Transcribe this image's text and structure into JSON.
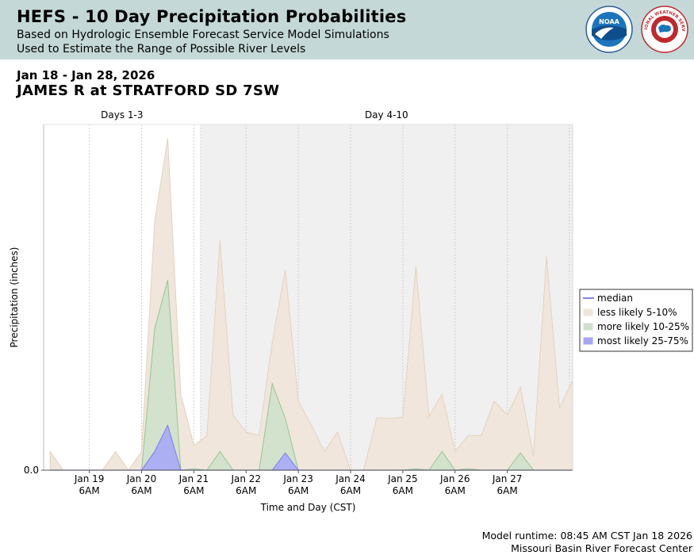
{
  "header": {
    "title": "HEFS - 10 Day Precipitation Probabilities",
    "subtitle1": "Based on Hydrologic Ensemble Forecast Service Model Simulations",
    "subtitle2": "Used to Estimate the Range of Possible River Levels",
    "logo_noaa_text": "NOAA",
    "logo_nws_text": "NATIONAL WEATHER SERVICE"
  },
  "info": {
    "date_range": "Jan 18 - Jan 28, 2026",
    "location": "JAMES R at STRATFORD SD 7SW"
  },
  "footer": {
    "runtime": "Model runtime: 08:45 AM CST Jan 18 2026",
    "center": "Missouri Basin River Forecast Center"
  },
  "colors": {
    "header_bg": "#c4d9d7",
    "plot_shade": "#f0f0f0",
    "less_likely": "#efe5d9",
    "more_likely": "#cde1c9",
    "most_likely": "#a6a6f7",
    "median": "#8282ee"
  },
  "chart_data": {
    "type": "area",
    "title": "",
    "xlabel": "Time and Day (CST)",
    "ylabel": "Precipitation (inches)",
    "x_unit": "hours since Jan 18 00:00 CST",
    "x_range": [
      9,
      252
    ],
    "ylim": [
      0,
      1
    ],
    "y_ticks": [
      {
        "value": 0,
        "label": "0.0"
      }
    ],
    "x_ticks": [
      {
        "x": 30,
        "line1": "Jan 19",
        "line2": "6AM"
      },
      {
        "x": 54,
        "line1": "Jan 20",
        "line2": "6AM"
      },
      {
        "x": 78,
        "line1": "Jan 21",
        "line2": "6AM"
      },
      {
        "x": 102,
        "line1": "Jan 22",
        "line2": "6AM"
      },
      {
        "x": 126,
        "line1": "Jan 23",
        "line2": "6AM"
      },
      {
        "x": 150,
        "line1": "Jan 24",
        "line2": "6AM"
      },
      {
        "x": 174,
        "line1": "Jan 25",
        "line2": "6AM"
      },
      {
        "x": 198,
        "line1": "Jan 26",
        "line2": "6AM"
      },
      {
        "x": 222,
        "line1": "Jan 27",
        "line2": "6AM"
      }
    ],
    "periods": [
      {
        "label": "Days 1-3",
        "start": 9,
        "end": 81
      },
      {
        "label": "Day 4-10",
        "start": 81,
        "end": 252
      }
    ],
    "period_boundary": 81,
    "extra_gridlines": [
      250.5
    ],
    "x": [
      12,
      18,
      24,
      30,
      36,
      42,
      48,
      54,
      60,
      66,
      72,
      78,
      84,
      90,
      96,
      102,
      108,
      114,
      120,
      126,
      132,
      138,
      144,
      150,
      156,
      162,
      168,
      174,
      180,
      186,
      192,
      198,
      204,
      210,
      216,
      222,
      228,
      234,
      240,
      246,
      252
    ],
    "series": [
      {
        "name": "less likely 5-10%",
        "values": [
          0.054,
          0,
          0,
          0,
          0,
          0.054,
          0,
          0.054,
          0.72,
          0.96,
          0.22,
          0.072,
          0.1,
          0.665,
          0.16,
          0.11,
          0.1,
          0.37,
          0.58,
          0.2,
          0.13,
          0.054,
          0.11,
          0,
          0,
          0.152,
          0.15,
          0.153,
          0.59,
          0.155,
          0.22,
          0.054,
          0.1,
          0.1,
          0.2,
          0.16,
          0.24,
          0.04,
          0.62,
          0.18,
          0.26
        ]
      },
      {
        "name": "more likely 10-25%",
        "values": [
          0,
          0,
          0,
          0,
          0,
          0,
          0,
          0,
          0.41,
          0.55,
          0,
          0.004,
          0,
          0.054,
          0,
          0,
          0,
          0.25,
          0.15,
          0,
          0,
          0,
          0,
          0,
          0,
          0,
          0,
          0,
          0.004,
          0,
          0.054,
          0,
          0.004,
          0,
          0,
          0,
          0.05,
          0,
          0,
          0,
          0
        ]
      },
      {
        "name": "most likely 25-75%",
        "values": [
          0,
          0,
          0,
          0,
          0,
          0,
          0,
          0,
          0.054,
          0.13,
          0,
          0,
          0,
          0,
          0,
          0,
          0,
          0,
          0.05,
          0,
          0,
          0,
          0,
          0,
          0,
          0,
          0,
          0,
          0,
          0,
          0,
          0,
          0,
          0,
          0,
          0,
          0,
          0,
          0,
          0,
          0
        ]
      },
      {
        "name": "median",
        "values": [
          0,
          0,
          0,
          0,
          0,
          0,
          0,
          0,
          0,
          0,
          0,
          0,
          0,
          0,
          0,
          0,
          0,
          0,
          0,
          0,
          0,
          0,
          0,
          0,
          0,
          0,
          0,
          0,
          0,
          0,
          0,
          0,
          0,
          0,
          0,
          0,
          0,
          0,
          0,
          0,
          0
        ]
      }
    ],
    "legend": {
      "placement": "right",
      "items": [
        {
          "label": "median",
          "type": "line",
          "color": "#8282ee"
        },
        {
          "label": "less likely 5-10%",
          "type": "box",
          "color": "#efe5d9"
        },
        {
          "label": "more likely 10-25%",
          "type": "box",
          "color": "#cde1c9"
        },
        {
          "label": "most likely 25-75%",
          "type": "box",
          "color": "#a6a6f7"
        }
      ]
    }
  }
}
